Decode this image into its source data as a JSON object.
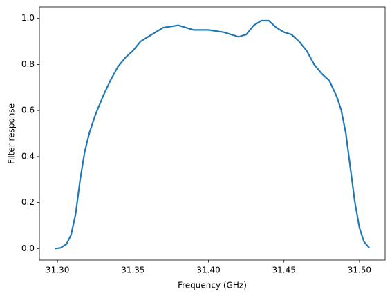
{
  "chart_data": {
    "type": "line",
    "x_label": "Frequency (GHz)",
    "y_label": "Filter response",
    "x": [
      31.2985,
      31.302,
      31.306,
      31.309,
      31.312,
      31.315,
      31.318,
      31.321,
      31.325,
      31.33,
      31.335,
      31.34,
      31.345,
      31.35,
      31.355,
      31.36,
      31.365,
      31.37,
      31.38,
      31.39,
      31.4,
      31.41,
      31.42,
      31.425,
      31.43,
      31.435,
      31.44,
      31.445,
      31.45,
      31.455,
      31.46,
      31.465,
      31.47,
      31.475,
      31.48,
      31.485,
      31.488,
      31.491,
      31.494,
      31.497,
      31.5,
      31.503,
      31.5065
    ],
    "series": [
      {
        "color": "#1f77b4",
        "values": [
          0.0,
          0.003,
          0.02,
          0.06,
          0.15,
          0.3,
          0.42,
          0.5,
          0.58,
          0.66,
          0.73,
          0.79,
          0.83,
          0.86,
          0.9,
          0.92,
          0.94,
          0.96,
          0.97,
          0.95,
          0.95,
          0.94,
          0.92,
          0.93,
          0.97,
          0.99,
          0.99,
          0.96,
          0.94,
          0.93,
          0.9,
          0.86,
          0.8,
          0.76,
          0.73,
          0.66,
          0.6,
          0.5,
          0.35,
          0.2,
          0.09,
          0.03,
          0.003
        ]
      }
    ],
    "xlim": [
      31.288,
      31.517
    ],
    "xticks": [
      {
        "value": 31.3,
        "label": "31.30"
      },
      {
        "value": 31.35,
        "label": "31.35"
      },
      {
        "value": 31.4,
        "label": "31.40"
      },
      {
        "value": 31.45,
        "label": "31.45"
      },
      {
        "value": 31.5,
        "label": "31.50"
      }
    ],
    "ylim": [
      -0.05,
      1.05
    ],
    "yticks": [
      {
        "value": 0,
        "label": "0.0"
      },
      {
        "value": 0.2,
        "label": "0.2"
      },
      {
        "value": 0.4,
        "label": "0.4"
      },
      {
        "value": 0.6,
        "label": "0.6"
      },
      {
        "value": 0.8,
        "label": "0.8"
      },
      {
        "value": 1,
        "label": "1.0"
      }
    ]
  }
}
